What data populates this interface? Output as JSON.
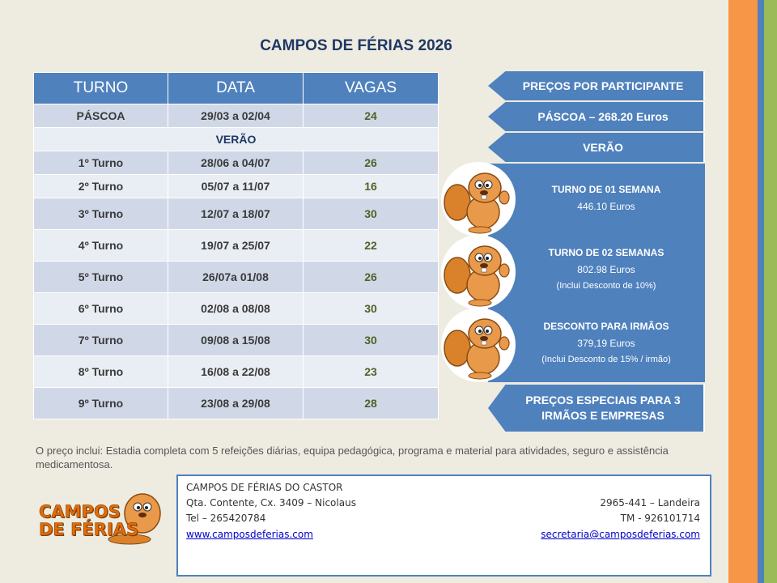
{
  "title": "CAMPOS DE FÉRIAS 2026",
  "table": {
    "headers": [
      "TURNO",
      "DATA",
      "VAGAS"
    ],
    "pascoa": {
      "turno": "PÁSCOA",
      "data": "29/03 a 02/04",
      "vagas": "24"
    },
    "verao_label": "VERÃO",
    "rows": [
      {
        "turno": "1º Turno",
        "data": "28/06 a 04/07",
        "vagas": "26"
      },
      {
        "turno": "2º Turno",
        "data": "05/07 a 11/07",
        "vagas": "16"
      },
      {
        "turno": "3º Turno",
        "data": "12/07 a 18/07",
        "vagas": "30"
      },
      {
        "turno": "4º Turno",
        "data": "19/07 a 25/07",
        "vagas": "22"
      },
      {
        "turno": "5º Turno",
        "data": "26/07a 01/08",
        "vagas": "26"
      },
      {
        "turno": "6º Turno",
        "data": "02/08 a 08/08",
        "vagas": "30"
      },
      {
        "turno": "7º Turno",
        "data": "09/08 a 15/08",
        "vagas": "30"
      },
      {
        "turno": "8º Turno",
        "data": "16/08 a 22/08",
        "vagas": "23"
      },
      {
        "turno": "9º Turno",
        "data": "23/08 a 29/08",
        "vagas": "28"
      }
    ]
  },
  "prices": {
    "header": "PREÇOS POR PARTICIPANTE",
    "pascoa": "PÁSCOA – 268.20 Euros",
    "verao": "VERÃO",
    "one_week": {
      "name": "TURNO DE 01 SEMANA",
      "value": "446.10 Euros"
    },
    "two_weeks": {
      "name": "TURNO DE 02 SEMANAS",
      "value": "802.98 Euros",
      "note": "(Inclui Desconto de 10%)"
    },
    "siblings": {
      "name": "DESCONTO PARA IRMÃOS",
      "value": "379,19 Euros",
      "note": "(Inclui Desconto de 15% / irmão)"
    },
    "special_line1": "PREÇOS ESPECIAIS PARA 3",
    "special_line2": "IRMÃOS E EMPRESAS"
  },
  "footnote": "O preço inclui: Estadia completa com 5 refeições diárias, equipa pedagógica, programa e material para atividades, seguro e assistência medicamentosa.",
  "logo": {
    "line1": "CAMPOS",
    "line2": "DE FÉRIAS"
  },
  "contact": {
    "name": "CAMPOS DE FÉRIAS DO CASTOR",
    "address": "Qta. Contente, Cx. 3409 – Nicolaus",
    "postal": "2965-441 – Landeira",
    "tel": "Tel – 265420784",
    "mobile": "TM - 926101714",
    "website": "www.camposdeferias.com",
    "email": "secretaria@camposdeferias.com"
  },
  "colors": {
    "accent": "#4f81bd",
    "orange": "#f79646",
    "green": "#9bbb59"
  }
}
